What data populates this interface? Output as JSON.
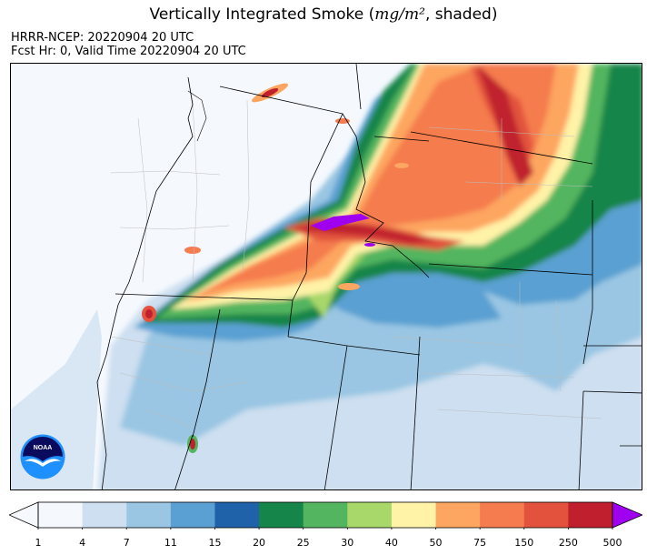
{
  "title": {
    "prefix": "Vertically Integrated Smoke (",
    "math": "mg/m²",
    "suffix": ", shaded)"
  },
  "subtitle_line1": "HRRR-NCEP: 20220904 20 UTC",
  "subtitle_line2": "Fcst Hr: 0, Valid Time 20220904 20 UTC",
  "logo": {
    "name": "NOAA",
    "text": "NOAA"
  },
  "colorbar": {
    "ticks": [
      "1",
      "4",
      "7",
      "11",
      "15",
      "20",
      "25",
      "30",
      "40",
      "50",
      "75",
      "150",
      "250",
      "500"
    ],
    "colors": [
      "#f5f9fe",
      "#cddff0",
      "#9ac6e3",
      "#5aa0d2",
      "#1f62aa",
      "#16854a",
      "#53b55f",
      "#a8d76a",
      "#fff3a8",
      "#fda661",
      "#f57c4e",
      "#e2523d",
      "#c0202e",
      "#9b0033"
    ],
    "under_color": "#f5f9fe",
    "over_color": "#a000f0"
  },
  "chart_data": {
    "type": "heatmap",
    "title": "Vertically Integrated Smoke (mg/m², shaded)",
    "variable": "Vertically Integrated Smoke",
    "units": "mg/m²",
    "model": "HRRR-NCEP",
    "run": "20220904 20 UTC",
    "forecast_hour": 0,
    "valid_time": "20220904 20 UTC",
    "levels": [
      1,
      4,
      7,
      11,
      15,
      20,
      25,
      30,
      40,
      50,
      75,
      150,
      250,
      500
    ],
    "extend": "both",
    "region": "Northwestern United States"
  }
}
